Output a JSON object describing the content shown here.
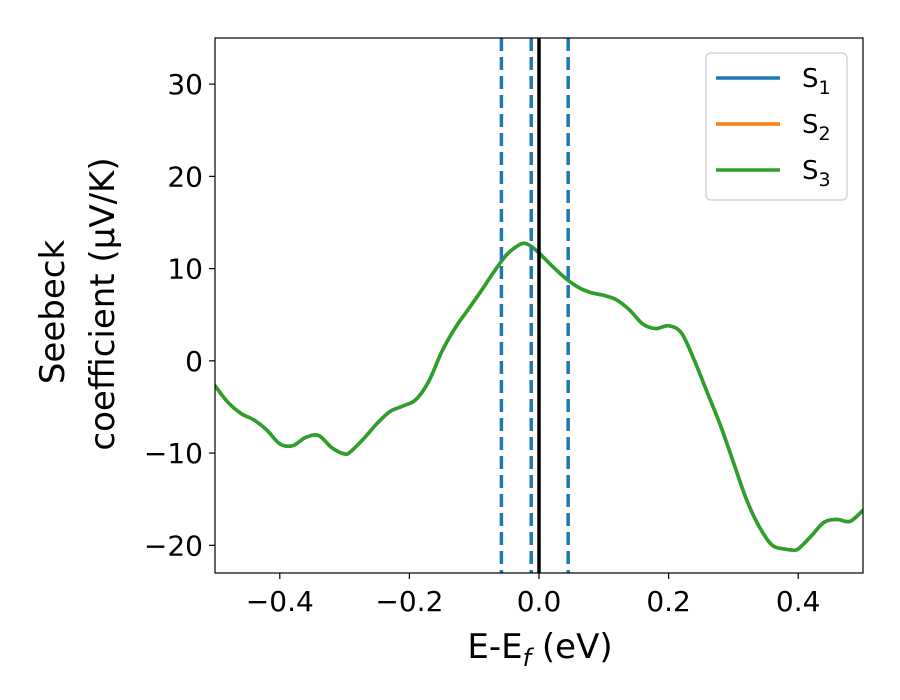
{
  "chart_data": {
    "type": "line",
    "xlabel": {
      "main": "E-E",
      "sub": "f",
      "unit": " (eV)"
    },
    "ylabel": {
      "line1": "Seebeck",
      "line2": "coefficient  (μV/K)"
    },
    "xlim": [
      -0.5,
      0.5
    ],
    "ylim": [
      -23,
      35
    ],
    "x_ticks": [
      -0.4,
      -0.2,
      0.0,
      0.2,
      0.4
    ],
    "x_tick_labels": [
      "−0.4",
      "−0.2",
      "0.0",
      "0.2",
      "0.4"
    ],
    "y_ticks": [
      -20,
      -10,
      0,
      10,
      20,
      30
    ],
    "y_tick_labels": [
      "−20",
      "−10",
      "0",
      "10",
      "20",
      "30"
    ],
    "grid": false,
    "legend_position": "top-right",
    "x": [
      -0.5,
      -0.48,
      -0.46,
      -0.44,
      -0.42,
      -0.4,
      -0.38,
      -0.36,
      -0.34,
      -0.32,
      -0.3,
      -0.29,
      -0.27,
      -0.25,
      -0.23,
      -0.21,
      -0.19,
      -0.17,
      -0.15,
      -0.13,
      -0.11,
      -0.09,
      -0.07,
      -0.05,
      -0.03,
      -0.02,
      -0.01,
      0.0,
      0.02,
      0.04,
      0.06,
      0.08,
      0.1,
      0.12,
      0.14,
      0.16,
      0.18,
      0.2,
      0.22,
      0.24,
      0.26,
      0.28,
      0.3,
      0.32,
      0.34,
      0.36,
      0.38,
      0.39,
      0.4,
      0.42,
      0.44,
      0.46,
      0.48,
      0.5
    ],
    "series": [
      {
        "name": "S",
        "sub": "1",
        "color": "#1f77b4",
        "values": [
          -2.7,
          -4.5,
          -5.7,
          -6.4,
          -7.5,
          -9.0,
          -9.2,
          -8.3,
          -8.1,
          -9.4,
          -10.1,
          -9.8,
          -8.4,
          -6.8,
          -5.5,
          -4.9,
          -4.2,
          -2.2,
          1.0,
          3.5,
          5.5,
          7.5,
          9.6,
          11.5,
          12.6,
          12.7,
          12.3,
          11.7,
          10.3,
          9.0,
          8.0,
          7.4,
          7.1,
          6.6,
          5.5,
          4.0,
          3.5,
          3.8,
          3.0,
          0.0,
          -3.5,
          -7.0,
          -11.0,
          -15.0,
          -18.0,
          -20.0,
          -20.4,
          -20.5,
          -20.4,
          -19.0,
          -17.5,
          -17.2,
          -17.4,
          -16.2
        ]
      },
      {
        "name": "S",
        "sub": "2",
        "color": "#ff7f0e",
        "values": [
          -2.7,
          -4.5,
          -5.7,
          -6.4,
          -7.5,
          -9.0,
          -9.2,
          -8.3,
          -8.1,
          -9.4,
          -10.1,
          -9.8,
          -8.4,
          -6.8,
          -5.5,
          -4.9,
          -4.2,
          -2.2,
          1.0,
          3.5,
          5.5,
          7.5,
          9.6,
          11.5,
          12.6,
          12.7,
          12.3,
          11.7,
          10.3,
          9.0,
          8.0,
          7.4,
          7.1,
          6.6,
          5.5,
          4.0,
          3.5,
          3.8,
          3.0,
          0.0,
          -3.5,
          -7.0,
          -11.0,
          -15.0,
          -18.0,
          -20.0,
          -20.4,
          -20.5,
          -20.4,
          -19.0,
          -17.5,
          -17.2,
          -17.4,
          -16.2
        ]
      },
      {
        "name": "S",
        "sub": "3",
        "color": "#2ca02c",
        "values": [
          -2.7,
          -4.5,
          -5.7,
          -6.4,
          -7.5,
          -9.0,
          -9.2,
          -8.3,
          -8.1,
          -9.4,
          -10.1,
          -9.8,
          -8.4,
          -6.8,
          -5.5,
          -4.9,
          -4.2,
          -2.2,
          1.0,
          3.5,
          5.5,
          7.5,
          9.6,
          11.5,
          12.6,
          12.7,
          12.3,
          11.7,
          10.3,
          9.0,
          8.0,
          7.4,
          7.1,
          6.6,
          5.5,
          4.0,
          3.5,
          3.8,
          3.0,
          0.0,
          -3.5,
          -7.0,
          -11.0,
          -15.0,
          -18.0,
          -20.0,
          -20.4,
          -20.5,
          -20.4,
          -19.0,
          -17.5,
          -17.2,
          -17.4,
          -16.2
        ]
      }
    ],
    "vlines": [
      {
        "x": -0.058,
        "style": "dashed",
        "color": "#1f77b4"
      },
      {
        "x": -0.012,
        "style": "dashed",
        "color": "#1f77b4"
      },
      {
        "x": 0.045,
        "style": "dashed",
        "color": "#1f77b4"
      },
      {
        "x": 0.0,
        "style": "solid",
        "color": "#000000"
      }
    ]
  }
}
